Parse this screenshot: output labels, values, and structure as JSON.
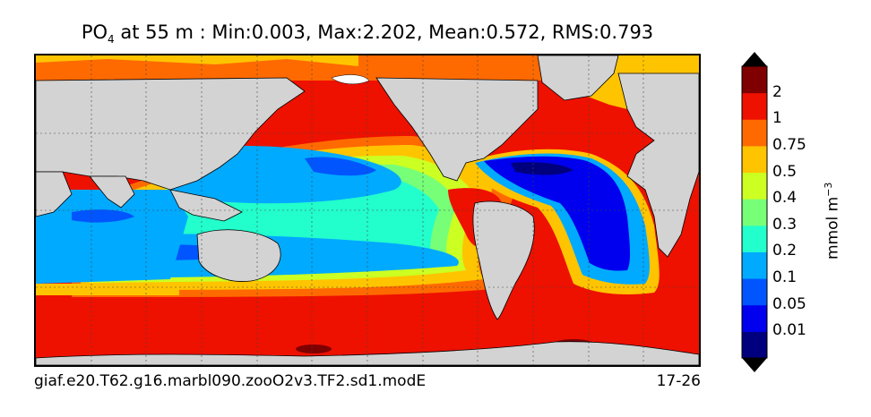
{
  "title": {
    "var": "PO",
    "sub": "4",
    "text": "  at 55 m : Min:0.003, Max:2.202, Mean:0.572, RMS:0.793"
  },
  "footer": {
    "case": "giaf.e20.T62.g16.marbl090.zooO2v3.TF2.sd1.modE",
    "years": "17-26"
  },
  "colorbar": {
    "units": "mmol m",
    "units_exp": "−3",
    "labels": [
      "0.01",
      "0.05",
      "0.1",
      "0.2",
      "0.3",
      "0.4",
      "0.5",
      "0.75",
      "1",
      "2"
    ],
    "colors": [
      "#00007f",
      "#0000ee",
      "#0055ff",
      "#00aaff",
      "#22ffcc",
      "#77ff77",
      "#ccff22",
      "#ffc400",
      "#ff6a00",
      "#ee1100",
      "#7f0000"
    ]
  },
  "map": {
    "land_color": "#d3d3d3",
    "sea_ice_color": "#ffffff"
  }
}
